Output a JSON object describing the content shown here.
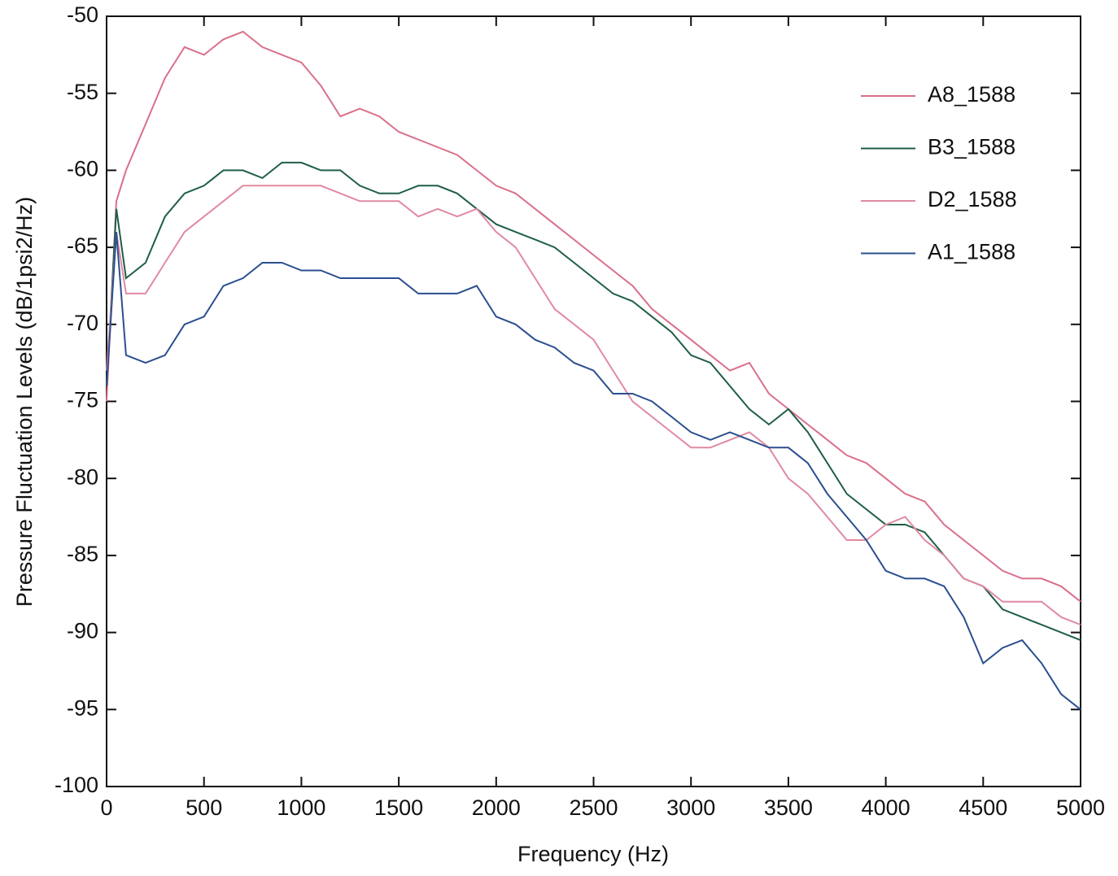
{
  "chart_data": {
    "type": "line",
    "xlabel": "Frequency (Hz)",
    "ylabel": "Pressure Fluctuation Levels (dB/1psi2/Hz)",
    "x": [
      0,
      50,
      100,
      200,
      300,
      400,
      500,
      600,
      700,
      800,
      900,
      1000,
      1100,
      1200,
      1300,
      1400,
      1500,
      1600,
      1700,
      1800,
      1900,
      2000,
      2100,
      2200,
      2300,
      2400,
      2500,
      2600,
      2700,
      2800,
      2900,
      3000,
      3100,
      3200,
      3300,
      3400,
      3500,
      3600,
      3700,
      3800,
      3900,
      4000,
      4100,
      4200,
      4300,
      4400,
      4500,
      4600,
      4700,
      4800,
      4900,
      5000
    ],
    "series": [
      {
        "name": "A8_1588",
        "color": "#d9708a",
        "values": [
          -75,
          -62,
          -60,
          -57,
          -54,
          -52,
          -52.5,
          -51.5,
          -51,
          -52,
          -52.5,
          -53,
          -54.5,
          -56.5,
          -56,
          -56.5,
          -57.5,
          -58,
          -58.5,
          -59,
          -60,
          -61,
          -61.5,
          -62.5,
          -63.5,
          -64.5,
          -65.5,
          -66.5,
          -67.5,
          -69,
          -70,
          -71,
          -72,
          -73,
          -72.5,
          -74.5,
          -75.5,
          -76.5,
          -77.5,
          -78.5,
          -79,
          -80,
          -81,
          -81.5,
          -83,
          -84,
          -85,
          -86,
          -86.5,
          -86.5,
          -87,
          -88
        ]
      },
      {
        "name": "B3_1588",
        "color": "#1f5e45",
        "values": [
          -74,
          -62.5,
          -67,
          -66,
          -63,
          -61.5,
          -61,
          -60,
          -60,
          -60.5,
          -59.5,
          -59.5,
          -60,
          -60,
          -61,
          -61.5,
          -61.5,
          -61,
          -61,
          -61.5,
          -62.5,
          -63.5,
          -64,
          -64.5,
          -65,
          -66,
          -67,
          -68,
          -68.5,
          -69.5,
          -70.5,
          -72,
          -72.5,
          -74,
          -75.5,
          -76.5,
          -75.5,
          -77,
          -79,
          -81,
          -82,
          -83,
          -83,
          -83.5,
          -85,
          -86.5,
          -87,
          -88.5,
          -89,
          -89.5,
          -90,
          -90.5
        ]
      },
      {
        "name": "D2_1588",
        "color": "#e08aa2",
        "values": [
          -73,
          -64,
          -68,
          -68,
          -66,
          -64,
          -63,
          -62,
          -61,
          -61,
          -61,
          -61,
          -61,
          -61.5,
          -62,
          -62,
          -62,
          -63,
          -62.5,
          -63,
          -62.5,
          -64,
          -65,
          -67,
          -69,
          -70,
          -71,
          -73,
          -75,
          -76,
          -77,
          -78,
          -78,
          -77.5,
          -77,
          -78,
          -80,
          -81,
          -82.5,
          -84,
          -84,
          -83,
          -82.5,
          -84,
          -85,
          -86.5,
          -87,
          -88,
          -88,
          -88,
          -89,
          -89.5
        ]
      },
      {
        "name": "A1_1588",
        "color": "#2b4f8f",
        "values": [
          -74,
          -64,
          -72,
          -72.5,
          -72,
          -70,
          -69.5,
          -67.5,
          -67,
          -66,
          -66,
          -66.5,
          -66.5,
          -67,
          -67,
          -67,
          -67,
          -68,
          -68,
          -68,
          -67.5,
          -69.5,
          -70,
          -71,
          -71.5,
          -72.5,
          -73,
          -74.5,
          -74.5,
          -75,
          -76,
          -77,
          -77.5,
          -77,
          -77.5,
          -78,
          -78,
          -79,
          -81,
          -82.5,
          -84,
          -86,
          -86.5,
          -86.5,
          -87,
          -89,
          -92,
          -91,
          -90.5,
          -92,
          -94,
          -95
        ]
      }
    ],
    "xlim": [
      0,
      5000
    ],
    "xticks": [
      0,
      500,
      1000,
      1500,
      2000,
      2500,
      3000,
      3500,
      4000,
      4500,
      5000
    ],
    "ylim": [
      -100,
      -50
    ],
    "yticks": [
      -100,
      -95,
      -90,
      -85,
      -80,
      -75,
      -70,
      -65,
      -60,
      -55,
      -50
    ],
    "grid": false,
    "legend": "upper right"
  }
}
